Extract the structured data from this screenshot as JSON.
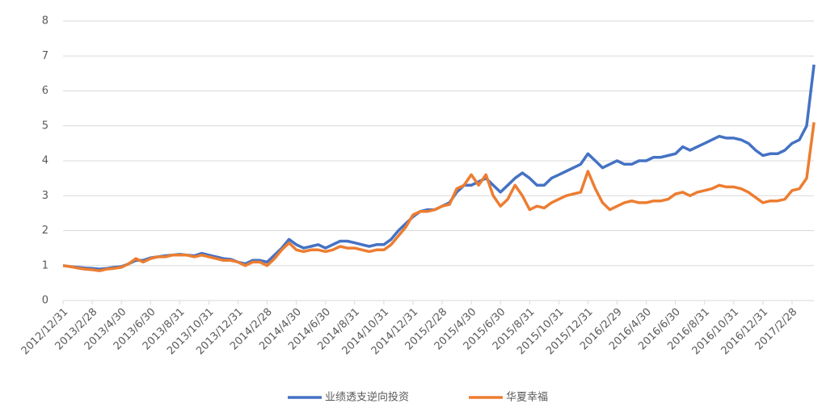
{
  "chart_data": {
    "type": "line",
    "categories": [
      "2012/12/31",
      null,
      null,
      null,
      "2013/2/28",
      null,
      null,
      null,
      "2013/4/30",
      null,
      null,
      null,
      "2013/6/30",
      null,
      null,
      null,
      "2013/8/31",
      null,
      null,
      null,
      "2013/10/31",
      null,
      null,
      null,
      "2013/12/31",
      null,
      null,
      null,
      "2014/2/28",
      null,
      null,
      null,
      "2014/4/30",
      null,
      null,
      null,
      "2014/6/30",
      null,
      null,
      null,
      "2014/8/31",
      null,
      null,
      null,
      "2014/10/31",
      null,
      null,
      null,
      "2014/12/31",
      null,
      null,
      null,
      "2015/2/28",
      null,
      null,
      null,
      "2015/4/30",
      null,
      null,
      null,
      "2015/6/30",
      null,
      null,
      null,
      "2015/8/31",
      null,
      null,
      null,
      "2015/10/31",
      null,
      null,
      null,
      "2015/12/31",
      null,
      null,
      null,
      "2016/2/29",
      null,
      null,
      null,
      "2016/4/30",
      null,
      null,
      null,
      "2016/6/30",
      null,
      null,
      null,
      "2016/8/31",
      null,
      null,
      null,
      "2016/10/31",
      null,
      null,
      null,
      "2016/12/31",
      null,
      null,
      null,
      "2017/2/28",
      null,
      null,
      null
    ],
    "series": [
      {
        "name": "业绩透支逆向投资",
        "color": "#4472c4",
        "values": [
          1.0,
          0.97,
          0.95,
          0.93,
          0.92,
          0.9,
          0.92,
          0.95,
          0.97,
          1.05,
          1.15,
          1.15,
          1.22,
          1.25,
          1.28,
          1.3,
          1.32,
          1.3,
          1.28,
          1.35,
          1.3,
          1.25,
          1.2,
          1.18,
          1.1,
          1.05,
          1.15,
          1.15,
          1.1,
          1.3,
          1.5,
          1.75,
          1.6,
          1.5,
          1.55,
          1.6,
          1.5,
          1.6,
          1.7,
          1.7,
          1.65,
          1.6,
          1.55,
          1.6,
          1.6,
          1.75,
          2.0,
          2.2,
          2.4,
          2.55,
          2.6,
          2.6,
          2.7,
          2.8,
          3.1,
          3.3,
          3.3,
          3.4,
          3.5,
          3.3,
          3.1,
          3.3,
          3.5,
          3.65,
          3.5,
          3.3,
          3.3,
          3.5,
          3.6,
          3.7,
          3.8,
          3.9,
          4.2,
          4.0,
          3.8,
          3.9,
          4.0,
          3.9,
          3.9,
          4.0,
          4.0,
          4.1,
          4.1,
          4.15,
          4.2,
          4.4,
          4.3,
          4.4,
          4.5,
          4.6,
          4.7,
          4.65,
          4.65,
          4.6,
          4.5,
          4.3,
          4.15,
          4.2,
          4.2,
          4.3,
          4.5,
          4.6,
          5.0,
          6.75
        ]
      },
      {
        "name": "华夏幸福",
        "color": "#ed7d31",
        "values": [
          1.0,
          0.97,
          0.93,
          0.9,
          0.88,
          0.85,
          0.9,
          0.92,
          0.95,
          1.05,
          1.2,
          1.1,
          1.2,
          1.25,
          1.25,
          1.3,
          1.3,
          1.3,
          1.25,
          1.3,
          1.25,
          1.2,
          1.15,
          1.15,
          1.1,
          1.0,
          1.1,
          1.1,
          1.0,
          1.2,
          1.45,
          1.65,
          1.45,
          1.4,
          1.45,
          1.45,
          1.4,
          1.45,
          1.55,
          1.5,
          1.5,
          1.45,
          1.4,
          1.45,
          1.45,
          1.6,
          1.85,
          2.1,
          2.45,
          2.55,
          2.55,
          2.6,
          2.7,
          2.75,
          3.2,
          3.3,
          3.6,
          3.3,
          3.6,
          3.0,
          2.7,
          2.9,
          3.3,
          3.0,
          2.6,
          2.7,
          2.65,
          2.8,
          2.9,
          3.0,
          3.05,
          3.1,
          3.7,
          3.2,
          2.8,
          2.6,
          2.7,
          2.8,
          2.85,
          2.8,
          2.8,
          2.85,
          2.85,
          2.9,
          3.05,
          3.1,
          3.0,
          3.1,
          3.15,
          3.2,
          3.3,
          3.25,
          3.25,
          3.2,
          3.1,
          2.95,
          2.8,
          2.85,
          2.85,
          2.9,
          3.15,
          3.2,
          3.5,
          5.1
        ]
      }
    ],
    "ylim": [
      0,
      8
    ],
    "yticks": [
      0,
      1,
      2,
      3,
      4,
      5,
      6,
      7,
      8
    ],
    "grid": true,
    "legend": "bottom"
  }
}
